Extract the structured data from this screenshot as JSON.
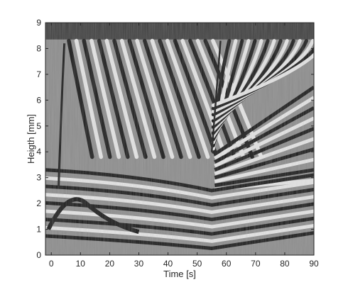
{
  "chart_data": {
    "type": "heatmap",
    "title": "",
    "xlabel": "Time [s]",
    "ylabel": "Heigth [mm]",
    "xlim": [
      -2,
      90
    ],
    "ylim": [
      0,
      9
    ],
    "x_ticks": [
      0,
      10,
      20,
      30,
      40,
      50,
      60,
      70,
      80,
      90
    ],
    "y_ticks": [
      0,
      1,
      2,
      3,
      4,
      5,
      6,
      7,
      8,
      9
    ],
    "x_tick_labels": [
      "0",
      "10",
      "20",
      "30",
      "40",
      "50",
      "60",
      "70",
      "80",
      "90"
    ],
    "y_tick_labels": [
      "0",
      "1",
      "2",
      "3",
      "4",
      "5",
      "6",
      "7",
      "8",
      "9"
    ],
    "colormap": "grayscale",
    "grid": false,
    "legend": "none",
    "features": [
      {
        "description": "fringe front rising from ~2.6 mm to ~8.2 mm",
        "t": [
          2.5,
          4.5
        ],
        "height": [
          2.6,
          8.2
        ]
      },
      {
        "description": "V-shaped fringe reversal",
        "t": [
          55
        ],
        "height": [
          4.0
        ]
      },
      {
        "description": "top dark band edge",
        "height": [
          8.4
        ]
      },
      {
        "description": "bright horizontal band",
        "t": [
          0,
          55
        ],
        "height": [
          3.2,
          2.3
        ]
      }
    ]
  },
  "colors": {
    "axis": "#262626",
    "background": "#ffffff",
    "fringe_dark": "#141414",
    "fringe_light": "#e6e6e6"
  }
}
